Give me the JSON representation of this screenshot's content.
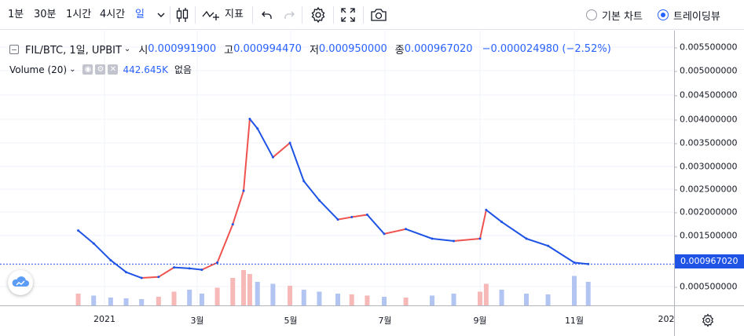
{
  "toolbar": {
    "intervals": [
      "1분",
      "30분",
      "1시간",
      "4시간",
      "일"
    ],
    "active_interval": "일",
    "indicators_label": "지표",
    "chart_modes": [
      "기본 차트",
      "트레이딩뷰"
    ],
    "selected_mode": "트레이딩뷰"
  },
  "legend": {
    "symbol": "FIL/BTC, 1일, UPBIT",
    "open_label": "시",
    "open": "0.000991900",
    "high_label": "고",
    "high": "0.000994470",
    "low_label": "저",
    "low": "0.000950000",
    "close_label": "종",
    "close": "0.000967020",
    "change": "−0.000024980 (−2.52%)"
  },
  "volume_legend": {
    "name": "Volume (20)",
    "value": "442.645K",
    "ma_value": "없음"
  },
  "price_axis": {
    "ticks": [
      "0.005500000",
      "0.005000000",
      "0.004500000",
      "0.004000000",
      "0.003500000",
      "0.003000000",
      "0.002500000",
      "0.002000000",
      "0.001500000",
      "0.000500000"
    ],
    "last_price": "0.000967020"
  },
  "time_axis": {
    "ticks": [
      "2021",
      "3월",
      "5월",
      "7월",
      "9월",
      "11월",
      "202"
    ]
  },
  "colors": {
    "up": "#ef5350",
    "down": "#1e53e5",
    "accent": "#2962ff",
    "volume_up": "#f7b9b8",
    "volume_down": "#b1c4f2"
  },
  "chart_data": {
    "type": "line",
    "title": "FIL/BTC, 1일, UPBIT",
    "ylim": [
      0.0001,
      0.0057
    ],
    "x": [
      "2020-12-15",
      "2020-12-25",
      "2021-01-05",
      "2021-01-15",
      "2021-01-25",
      "2021-02-05",
      "2021-02-15",
      "2021-02-25",
      "2021-03-05",
      "2021-03-15",
      "2021-03-25",
      "2021-04-01",
      "2021-04-05",
      "2021-04-10",
      "2021-04-20",
      "2021-05-01",
      "2021-05-10",
      "2021-05-20",
      "2021-06-01",
      "2021-06-10",
      "2021-06-20",
      "2021-07-01",
      "2021-07-15",
      "2021-08-01",
      "2021-08-15",
      "2021-09-01",
      "2021-09-05",
      "2021-09-15",
      "2021-10-01",
      "2021-10-15",
      "2021-11-01",
      "2021-11-10"
    ],
    "series": [
      {
        "values": [
          0.00167,
          0.0014,
          0.00105,
          0.0008,
          0.00068,
          0.0007,
          0.0009,
          0.00088,
          0.00085,
          0.001,
          0.0018,
          0.0025,
          0.004,
          0.0038,
          0.0032,
          0.0035,
          0.0027,
          0.0023,
          0.0019,
          0.00195,
          0.002,
          0.0016,
          0.0017,
          0.0015,
          0.00145,
          0.0015,
          0.0021,
          0.00185,
          0.0015,
          0.00135,
          0.001,
          0.00097
        ]
      }
    ],
    "volume": [
      30,
      25,
      20,
      18,
      16,
      22,
      35,
      40,
      30,
      45,
      70,
      90,
      80,
      60,
      55,
      50,
      40,
      35,
      30,
      28,
      25,
      22,
      20,
      25,
      30,
      35,
      55,
      40,
      30,
      28,
      75,
      60
    ]
  }
}
